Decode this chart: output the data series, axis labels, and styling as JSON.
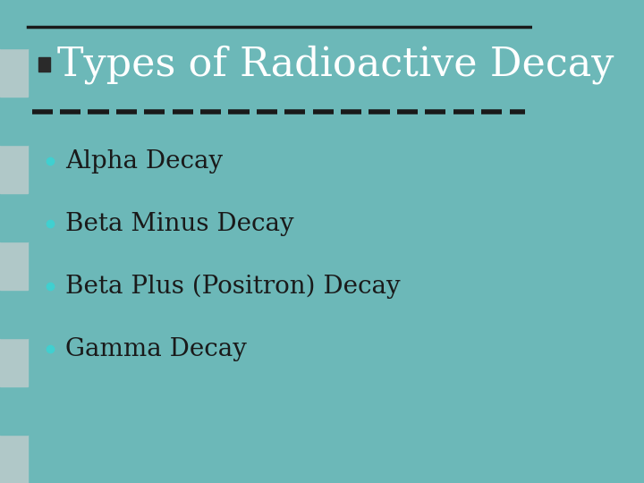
{
  "title": "Types of Radioactive Decay",
  "bullet_items": [
    "Alpha Decay",
    "Beta Minus Decay",
    "Beta Plus (Positron) Decay",
    "Gamma Decay"
  ],
  "bg_color": "#6cb8b8",
  "title_color": "#ffffff",
  "bullet_text_color": "#1a1a1a",
  "bullet_dot_color": "#40d0d0",
  "title_icon_color": "#2a2a2a",
  "top_line_color": "#1a1a1a",
  "divider_dash_color_dark": "#1a1a1a",
  "divider_dash_color_light": "#6cb8b8",
  "left_strip_color": "#a0c8c8",
  "title_fontsize": 32,
  "bullet_fontsize": 20
}
